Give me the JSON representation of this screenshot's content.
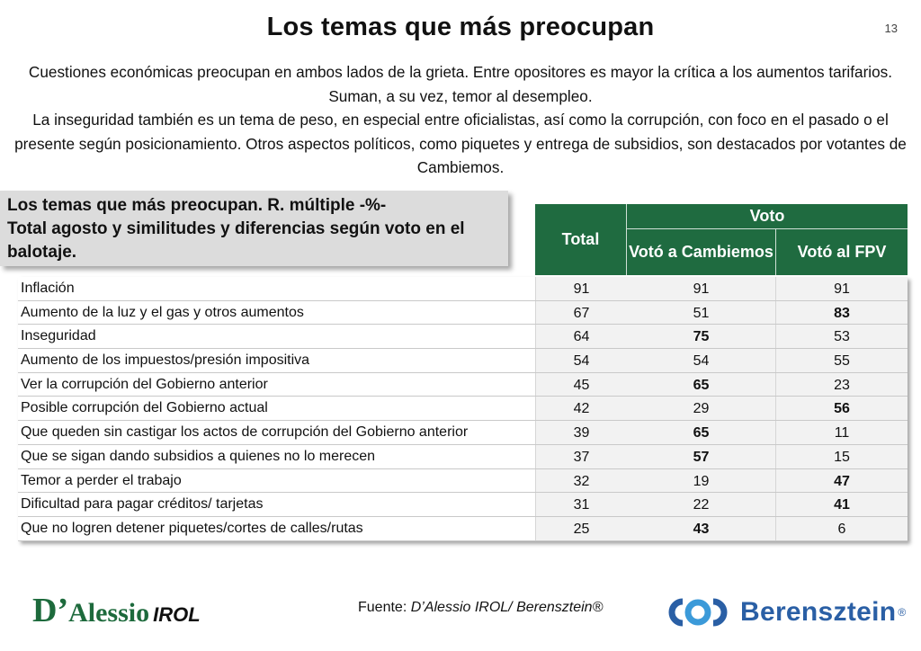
{
  "page": {
    "title": "Los temas que más preocupan",
    "number": "13"
  },
  "intro": {
    "paragraph1": "Cuestiones económicas preocupan en ambos lados de la grieta. Entre opositores es mayor la crítica a los aumentos tarifarios. Suman, a su vez, temor al desempleo.",
    "paragraph2": "La inseguridad también es un tema de peso, en especial entre oficialistas, así como la corrupción, con foco en el pasado o el presente según posicionamiento. Otros aspectos políticos, como piquetes y entrega de subsidios, son destacados por votantes de Cambiemos."
  },
  "box": {
    "line1": "Los temas que más preocupan. R. múltiple -%-",
    "line2": "Total agosto y similitudes y diferencias según voto en el balotaje."
  },
  "table": {
    "header": {
      "total": "Total",
      "voto": "Voto",
      "cambiemos": "Votó a Cambiemos",
      "fpv": "Votó al FPV"
    },
    "rows": [
      {
        "label": "Inflación",
        "total": "91",
        "cambiemos": "91",
        "fpv": "91",
        "bold_col": ""
      },
      {
        "label": "Aumento de la luz y el gas y otros aumentos",
        "total": "67",
        "cambiemos": "51",
        "fpv": "83",
        "bold_col": "fpv"
      },
      {
        "label": "Inseguridad",
        "total": "64",
        "cambiemos": "75",
        "fpv": "53",
        "bold_col": "cambiemos"
      },
      {
        "label": "Aumento de los impuestos/presión impositiva",
        "total": "54",
        "cambiemos": "54",
        "fpv": "55",
        "bold_col": ""
      },
      {
        "label": "Ver la corrupción del Gobierno anterior",
        "total": "45",
        "cambiemos": "65",
        "fpv": "23",
        "bold_col": "cambiemos"
      },
      {
        "label": "Posible corrupción del Gobierno actual",
        "total": "42",
        "cambiemos": "29",
        "fpv": "56",
        "bold_col": "fpv"
      },
      {
        "label": "Que queden sin castigar los actos de corrupción del Gobierno anterior",
        "total": "39",
        "cambiemos": "65",
        "fpv": "11",
        "bold_col": "cambiemos"
      },
      {
        "label": "Que se sigan dando subsidios a quienes no lo merecen",
        "total": "37",
        "cambiemos": "57",
        "fpv": "15",
        "bold_col": "cambiemos"
      },
      {
        "label": "Temor a perder el trabajo",
        "total": "32",
        "cambiemos": "19",
        "fpv": "47",
        "bold_col": "fpv"
      },
      {
        "label": "Dificultad para pagar créditos/ tarjetas",
        "total": "31",
        "cambiemos": "22",
        "fpv": "41",
        "bold_col": "fpv"
      },
      {
        "label": "Que no logren detener piquetes/cortes de calles/rutas",
        "total": "25",
        "cambiemos": "43",
        "fpv": "6",
        "bold_col": "cambiemos"
      }
    ]
  },
  "footer": {
    "source_prefix": "Fuente: ",
    "source_name": "D’Alessio IROL/ Berensztein®",
    "logo_left_d": "D’",
    "logo_left_rest": "Alessio",
    "logo_left_irol": "IROL",
    "logo_right_word": "Berensztein",
    "logo_right_reg": "®"
  },
  "colors": {
    "header_green": "#1f6b40",
    "dalessio_green": "#1d6a3c",
    "berensztein_blue": "#2a5fa5"
  }
}
